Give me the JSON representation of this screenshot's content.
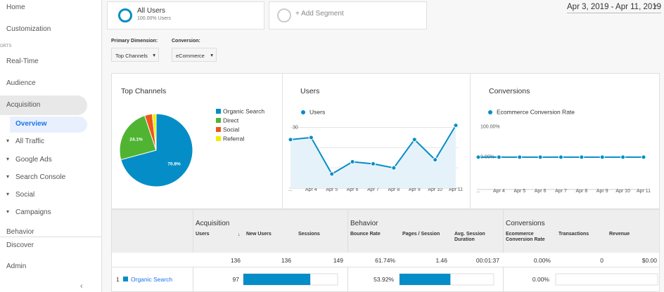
{
  "sidebar": {
    "items": [
      "Home",
      "Customization",
      "ORTS",
      "Real-Time",
      "Audience",
      "Acquisition",
      "Overview",
      "All Traffic",
      "Google Ads",
      "Search Console",
      "Social",
      "Campaigns",
      "Behavior",
      "Discover",
      "Admin"
    ]
  },
  "segments": {
    "active": {
      "name": "All Users",
      "share": "100.00% Users"
    },
    "add": "+ Add Segment"
  },
  "date_range": "Apr 3, 2019 - Apr 11, 2019",
  "controls": {
    "primary_label": "Primary Dimension:",
    "primary_value": "Top Channels",
    "conversion_label": "Conversion:",
    "conversion_value": "eCommerce"
  },
  "chart_data": [
    {
      "type": "pie",
      "title": "Top Channels",
      "categories": [
        "Organic Search",
        "Direct",
        "Social",
        "Referral"
      ],
      "values": [
        70.8,
        24.1,
        3.4,
        1.7
      ],
      "value_labels": [
        "70.8%",
        "24.1%",
        null,
        null
      ],
      "colors": [
        "#058dc7",
        "#50b432",
        "#ed561b",
        "#edef00"
      ]
    },
    {
      "type": "line",
      "title": "Users",
      "categories": [
        "...",
        "Apr 4",
        "Apr 5",
        "Apr 6",
        "Apr 7",
        "Apr 8",
        "Apr 9",
        "Apr 10",
        "Apr 11"
      ],
      "series": [
        {
          "name": "Users",
          "color": "#058dc7",
          "values": [
            24,
            25,
            7,
            13,
            12,
            10,
            24,
            14,
            31
          ]
        }
      ],
      "ylim": [
        0,
        34
      ],
      "yticks": [
        10,
        20,
        30
      ],
      "grid": true,
      "area": true
    },
    {
      "type": "line",
      "title": "Conversions",
      "categories": [
        "...",
        "Apr 4",
        "Apr 5",
        "Apr 6",
        "Apr 7",
        "Apr 8",
        "Apr 9",
        "Apr 10",
        "Apr 11"
      ],
      "series": [
        {
          "name": "Ecommerce Conversion Rate",
          "color": "#058dc7",
          "values": [
            0,
            0,
            0,
            0,
            0,
            0,
            0,
            0,
            0
          ]
        }
      ],
      "ylim": [
        -107,
        125
      ],
      "yticks": [
        {
          "value": 100,
          "label": "100.00%"
        },
        {
          "value": 0,
          "label": "0.00%"
        }
      ],
      "grid": false,
      "area": false
    }
  ],
  "table": {
    "groups": [
      "Acquisition",
      "Behavior",
      "Conversions"
    ],
    "columns": [
      "Users",
      "New Users",
      "Sessions",
      "Bounce Rate",
      "Pages / Session",
      "Avg. Session Duration",
      "Ecommerce Conversion Rate",
      "Transactions",
      "Revenue"
    ],
    "totals": [
      "136",
      "136",
      "149",
      "61.74%",
      "1.46",
      "00:01:37",
      "0.00%",
      "0",
      "$0.00"
    ],
    "rows": [
      {
        "rank": "1",
        "channel": "Organic Search",
        "users": "97",
        "new_users_bar": 71,
        "bounce_rate": "53.92%",
        "pages_bar": 54,
        "conversion_rate": "0.00%",
        "transactions_bar": 0
      }
    ]
  }
}
